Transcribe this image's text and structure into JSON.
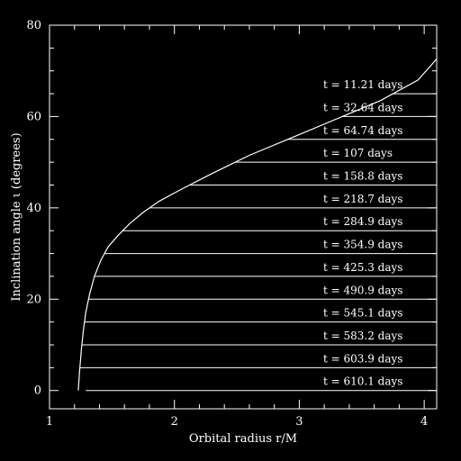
{
  "chart_data": {
    "type": "line",
    "xlabel": "Orbital radius r/M",
    "ylabel": "Inclination angle ι  (degrees)",
    "xlim": [
      1,
      4.1
    ],
    "ylim": [
      -4,
      80
    ],
    "x_ticks": [
      1,
      2,
      3,
      4
    ],
    "y_ticks": [
      0,
      20,
      40,
      60,
      80
    ],
    "grid": false,
    "background": "#000000",
    "line_color": "#ffffff",
    "envelope": {
      "x": [
        1.23,
        1.24,
        1.255,
        1.27,
        1.29,
        1.32,
        1.36,
        1.41,
        1.47,
        1.55,
        1.64,
        1.75,
        1.88,
        2.05,
        2.3,
        2.6,
        2.95,
        3.3,
        3.65,
        3.95,
        4.1
      ],
      "y": [
        0,
        4,
        9,
        13,
        17,
        21,
        25,
        28.5,
        31.5,
        34,
        36.5,
        39,
        41.5,
        44,
        47.5,
        51.5,
        55.5,
        59.5,
        63.5,
        68,
        72.6
      ]
    },
    "series": [
      {
        "label": "t = 11.21 days",
        "y": 65
      },
      {
        "label": "t = 32.64 days",
        "y": 60
      },
      {
        "label": "t = 64.74 days",
        "y": 55
      },
      {
        "label": "t = 107 days",
        "y": 50
      },
      {
        "label": "t = 158.8 days",
        "y": 45
      },
      {
        "label": "t = 218.7 days",
        "y": 40
      },
      {
        "label": "t = 284.9 days",
        "y": 35
      },
      {
        "label": "t = 354.9 days",
        "y": 30
      },
      {
        "label": "t = 425.3 days",
        "y": 25
      },
      {
        "label": "t = 490.9 days",
        "y": 20
      },
      {
        "label": "t = 545.1 days",
        "y": 15
      },
      {
        "label": "t = 583.2 days",
        "y": 10
      },
      {
        "label": "t = 603.9 days",
        "y": 5
      },
      {
        "label": "t = 610.1 days",
        "y": 0
      }
    ]
  }
}
